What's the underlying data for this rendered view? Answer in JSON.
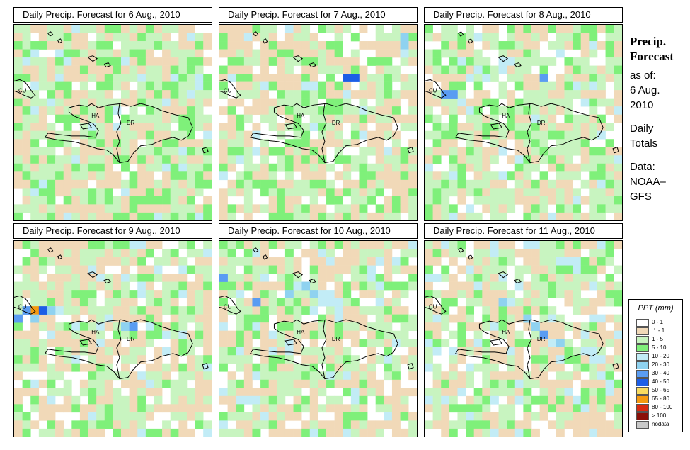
{
  "panels": [
    {
      "title": "Daily Precip. Forecast for  6 Aug., 2010"
    },
    {
      "title": "Daily Precip. Forecast for  7 Aug., 2010"
    },
    {
      "title": "Daily Precip. Forecast for  8 Aug., 2010"
    },
    {
      "title": "Daily Precip. Forecast for  9 Aug., 2010"
    },
    {
      "title": "Daily Precip. Forecast for  10 Aug., 2010"
    },
    {
      "title": "Daily Precip. Forecast for  11 Aug., 2010"
    }
  ],
  "map_labels": {
    "cu": "CU",
    "ha": "HA",
    "dr": "DR"
  },
  "side": {
    "title_line1": "Precip.",
    "title_line2": "Forecast",
    "as_of": "as of:",
    "date_line1": "6 Aug.",
    "date_line2": "2010",
    "totals_line1": "Daily",
    "totals_line2": "Totals",
    "data_line1": "Data:",
    "data_line2": "NOAA–",
    "data_line3": "GFS"
  },
  "legend": {
    "title": "PPT (mm)",
    "items": [
      {
        "label": "0 - 1",
        "color": "#ffffff"
      },
      {
        "label": ".1 - 1",
        "color": "#f1d9b8"
      },
      {
        "label": "1 - 5",
        "color": "#c8f4c0"
      },
      {
        "label": "5 - 10",
        "color": "#7ff07a"
      },
      {
        "label": "10 - 20",
        "color": "#c2ecf6"
      },
      {
        "label": "20 - 30",
        "color": "#8fd2f0"
      },
      {
        "label": "30 - 40",
        "color": "#5a9cf2"
      },
      {
        "label": "40 - 50",
        "color": "#1c5ee6"
      },
      {
        "label": "50 - 65",
        "color": "#f8dc60"
      },
      {
        "label": "65 - 80",
        "color": "#f59a10"
      },
      {
        "label": "80 - 100",
        "color": "#d82a10"
      },
      {
        "label": "> 100",
        "color": "#8a1008"
      },
      {
        "label": "nodata",
        "color": "#c8c8c8"
      }
    ]
  }
}
